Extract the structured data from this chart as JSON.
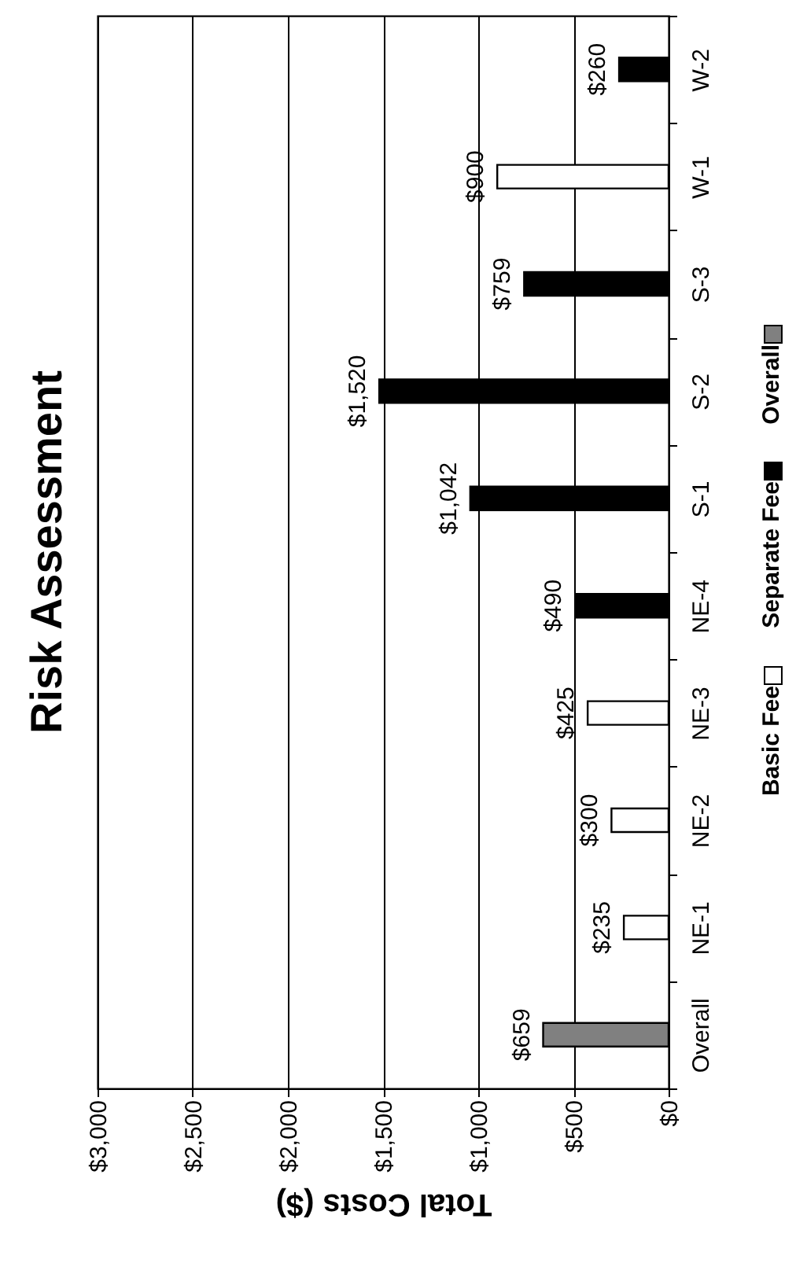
{
  "chart_data": {
    "type": "bar",
    "orientation": "horizontal",
    "title": "Risk Assessment",
    "xlabel": "Total Costs ($)",
    "categories": [
      "W-2",
      "W-1",
      "S-3",
      "S-2",
      "S-1",
      "NE-4",
      "NE-3",
      "NE-2",
      "NE-1",
      "Overall"
    ],
    "series": [
      {
        "name": "Basic Fee",
        "color": "#ffffff",
        "values": [
          null,
          900,
          null,
          null,
          null,
          null,
          425,
          300,
          235,
          null
        ],
        "value_labels": [
          null,
          "$900",
          null,
          null,
          null,
          null,
          "$425",
          "$300",
          "$235",
          null
        ]
      },
      {
        "name": "Separate Fee",
        "color": "#000000",
        "values": [
          260,
          null,
          759,
          1520,
          1042,
          490,
          null,
          null,
          null,
          null
        ],
        "value_labels": [
          "$260",
          null,
          "$759",
          "$1,520",
          "$1,042",
          "$490",
          null,
          null,
          null,
          null
        ]
      },
      {
        "name": "Overall",
        "color": "#808080",
        "values": [
          null,
          null,
          null,
          null,
          null,
          null,
          null,
          null,
          null,
          659
        ],
        "value_labels": [
          null,
          null,
          null,
          null,
          null,
          null,
          null,
          null,
          null,
          "$659"
        ]
      }
    ],
    "xlim": [
      3000,
      0
    ],
    "xticks": [
      {
        "value": 3000,
        "label": "$3,000"
      },
      {
        "value": 2500,
        "label": "$2,500"
      },
      {
        "value": 2000,
        "label": "$2,000"
      },
      {
        "value": 1500,
        "label": "$1,500"
      },
      {
        "value": 1000,
        "label": "$1,000"
      },
      {
        "value": 500,
        "label": "$500"
      },
      {
        "value": 0,
        "label": "$0"
      }
    ],
    "grid": "x",
    "legend": "right"
  }
}
